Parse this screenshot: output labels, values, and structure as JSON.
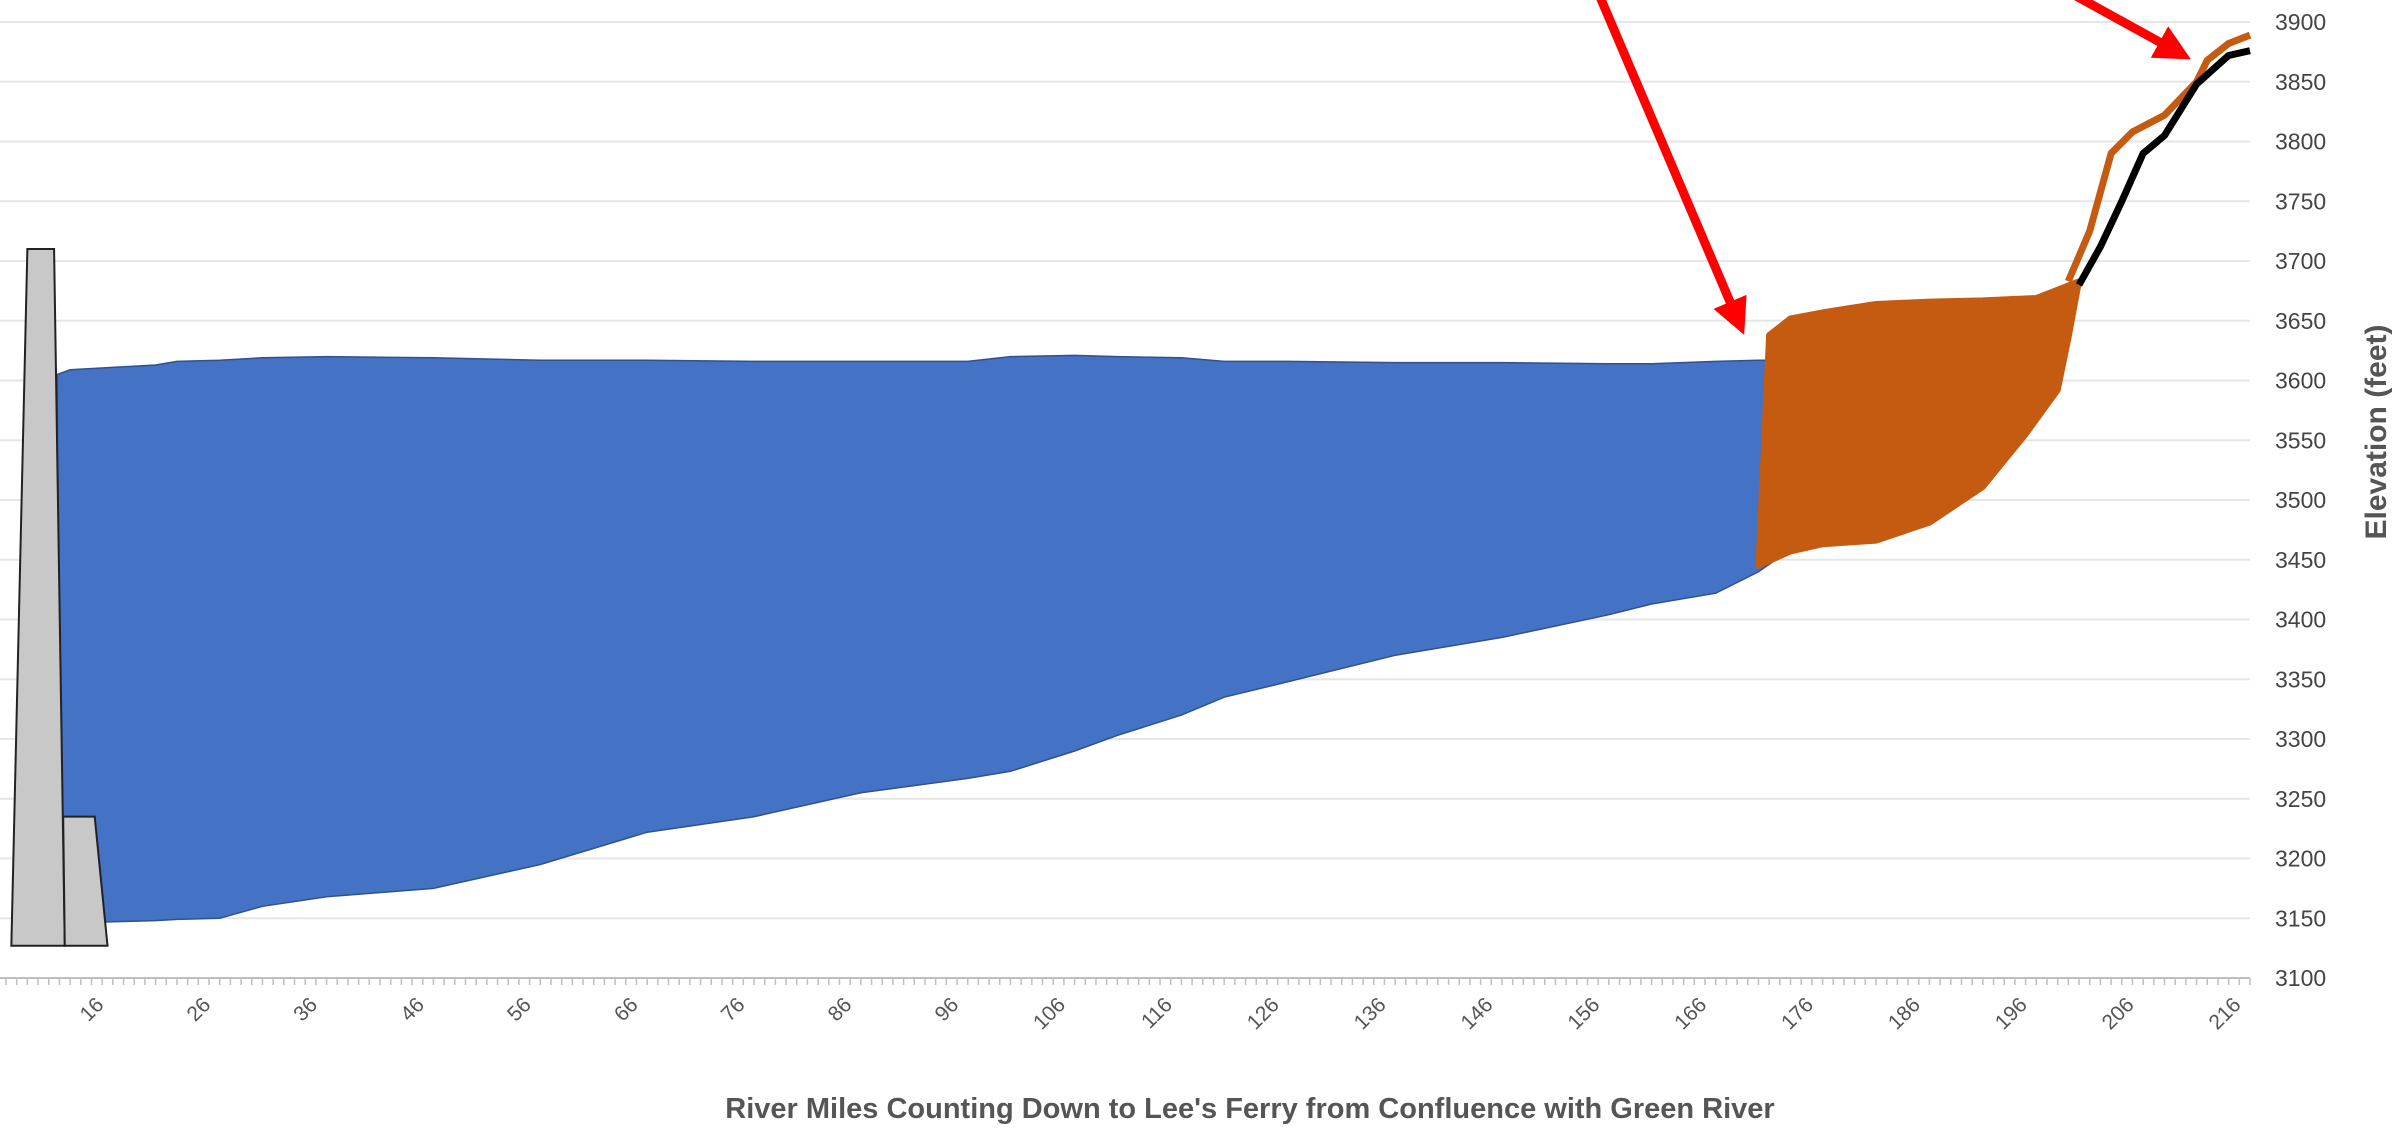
{
  "chart_data": {
    "type": "area",
    "title": "",
    "xlabel": "River Miles Counting Down to Lee's Ferry from Confluence with Green River",
    "ylabel": "Elevation (feet)",
    "xlim": [
      6,
      216
    ],
    "ylim": [
      3100,
      3900
    ],
    "x_ticks": [
      "16",
      "26",
      "36",
      "46",
      "56",
      "66",
      "76",
      "86",
      "96",
      "106",
      "116",
      "126",
      "136",
      "146",
      "156",
      "166",
      "176",
      "186",
      "196",
      "206",
      "216"
    ],
    "y_ticks": [
      3100,
      3150,
      3200,
      3250,
      3300,
      3350,
      3400,
      3450,
      3500,
      3550,
      3600,
      3650,
      3700,
      3750,
      3800,
      3850,
      3900
    ],
    "grid": true,
    "y_axis_side": "right",
    "series": [
      {
        "role": "reservoir-water",
        "color": "#4472C4",
        "x": [
          10.8,
          12,
          16,
          20,
          22,
          26,
          30,
          36,
          46,
          56,
          66,
          76,
          86,
          96,
          100,
          106,
          110,
          116,
          120,
          126,
          136,
          146,
          156,
          160,
          166,
          170,
          171.6
        ],
        "top": [
          3605,
          3609,
          3611,
          3613,
          3616,
          3617,
          3619,
          3620,
          3619,
          3617,
          3617,
          3616,
          3616,
          3616,
          3620,
          3621,
          3620,
          3619,
          3616,
          3616,
          3615,
          3615,
          3614,
          3614,
          3616,
          3617,
          3617
        ],
        "bottom": [
          3145,
          3146,
          3147,
          3148,
          3149,
          3150,
          3160,
          3168,
          3175,
          3195,
          3222,
          3235,
          3255,
          3267,
          3273,
          3290,
          3303,
          3320,
          3335,
          3348,
          3370,
          3385,
          3404,
          3413,
          3422,
          3440,
          3450
        ]
      },
      {
        "role": "sediment-delta",
        "color": "#C55A11",
        "upper": {
          "x": [
            171,
            173,
            176,
            181,
            186,
            191,
            196,
            200
          ],
          "y": [
            3638,
            3652,
            3657,
            3664,
            3666,
            3667,
            3669,
            3683
          ]
        },
        "lower": {
          "x": [
            170,
            173,
            176,
            181,
            186,
            191,
            195,
            198,
            199
          ],
          "y": [
            3445,
            3457,
            3463,
            3466,
            3481,
            3511,
            3555,
            3592,
            3635
          ]
        }
      },
      {
        "role": "river-water-surface",
        "color": "#C55A11",
        "x": [
          199,
          201,
          203,
          205,
          208,
          211,
          212,
          214,
          216
        ],
        "y": [
          3683,
          3725,
          3790,
          3808,
          3822,
          3850,
          3868,
          3882,
          3889
        ]
      },
      {
        "role": "riverbed",
        "color": "#000000",
        "x": [
          200,
          202,
          204,
          206,
          208,
          211,
          213,
          214,
          216
        ],
        "y": [
          3680,
          3712,
          3750,
          3790,
          3805,
          3848,
          3864,
          3872,
          3876
        ]
      }
    ],
    "dam": {
      "color": "#C8C8C8",
      "crest_x": [
        8,
        10.5
      ],
      "top": 3710,
      "base_x": [
        6.5,
        11.5
      ],
      "base": 3127,
      "step_top": 3235,
      "step_x_outer": 15.5
    },
    "annotations": [
      {
        "type": "arrow",
        "color": "#FF0000",
        "points_to": "delta",
        "target_x": 168,
        "target_y": 3652
      },
      {
        "type": "arrow",
        "color": "#FF0000",
        "points_to": "upstream-river",
        "target_x": 209,
        "target_y": 3876
      }
    ]
  }
}
